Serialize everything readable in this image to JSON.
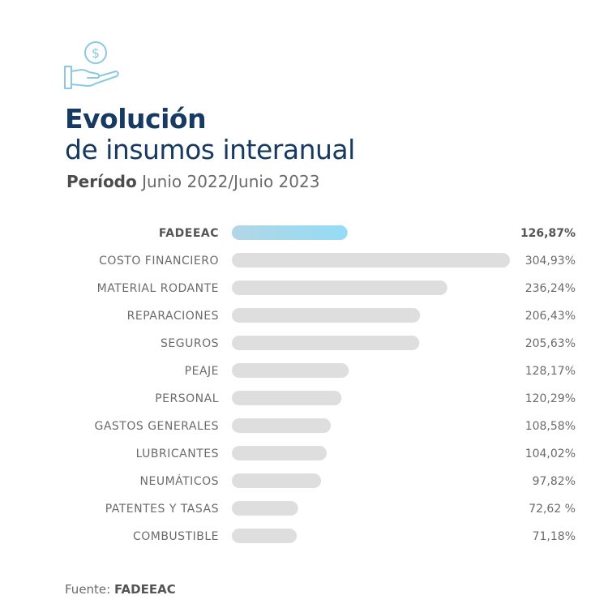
{
  "header": {
    "title_line1": "Evolución",
    "title_line2": "de insumos interanual",
    "period_label": "Período",
    "period_value": "Junio 2022/Junio 2023"
  },
  "footer": {
    "source_label": "Fuente:",
    "source_value": "FADEEAC"
  },
  "colors": {
    "title": "#173a63",
    "bar": "#dedede",
    "highlight_start": "#b2d6e6",
    "highlight_end": "#94dcf5",
    "icon": "#8cc8e2"
  },
  "icon": "hand-holding-dollar-icon",
  "chart_data": {
    "type": "bar",
    "orientation": "horizontal",
    "categories": [
      "FADEEAC",
      "COSTO FINANCIERO",
      "MATERIAL RODANTE",
      "REPARACIONES",
      "SEGUROS",
      "PEAJE",
      "PERSONAL",
      "GASTOS GENERALES",
      "LUBRICANTES",
      "NEUMÁTICOS",
      "PATENTES Y TASAS",
      "COMBUSTIBLE"
    ],
    "values": [
      126.87,
      304.93,
      236.24,
      206.43,
      205.63,
      128.17,
      120.29,
      108.58,
      104.02,
      97.82,
      72.62,
      71.18
    ],
    "value_labels": [
      "126,87%",
      "304,93%",
      "236,24%",
      "206,43%",
      "205,63%",
      "128,17%",
      "120,29%",
      "108,58%",
      "104,02%",
      "97,82%",
      "72,62 %",
      "71,18%"
    ],
    "highlight_category": "FADEEAC",
    "unit": "%",
    "grid": false,
    "legend": "none"
  }
}
